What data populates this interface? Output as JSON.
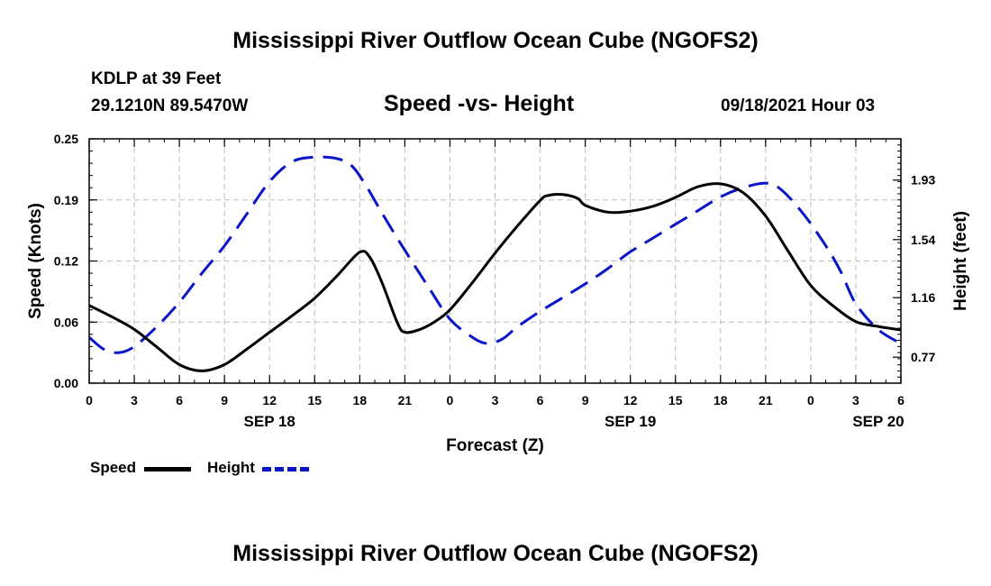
{
  "header": {
    "title": "Mississippi River Outflow Ocean Cube (NGOFS2)",
    "station": "KDLP at 39 Feet",
    "coords": "29.1210N  89.5470W",
    "subtitle": "Speed -vs- Height",
    "datetime": "09/18/2021 Hour 03"
  },
  "footer": {
    "title": "Mississippi River Outflow Ocean Cube (NGOFS2)"
  },
  "legend": {
    "items": [
      {
        "label": "Speed",
        "color": "#000000",
        "dashed": false
      },
      {
        "label": "Height",
        "color": "#0a14c8",
        "dashed": true
      }
    ]
  },
  "chart_data": {
    "type": "line",
    "xlabel": "Forecast (Z)",
    "ylabel": "Speed (Knots)",
    "y2label": "Height (feet)",
    "x_unit": "forecast hours from 00Z SEP 18",
    "xlim": [
      0,
      54
    ],
    "ylim": [
      0,
      0.25
    ],
    "y2lim": [
      0.6,
      2.2
    ],
    "x_ticks": [
      0,
      3,
      6,
      9,
      12,
      15,
      18,
      21,
      24,
      27,
      30,
      33,
      36,
      39,
      42,
      45,
      48,
      51,
      54
    ],
    "x_tick_labels": [
      "0",
      "3",
      "6",
      "9",
      "12",
      "15",
      "18",
      "21",
      "0",
      "3",
      "6",
      "9",
      "12",
      "15",
      "18",
      "21",
      "0",
      "3",
      "6"
    ],
    "y_ticks": [
      0,
      0.0625,
      0.125,
      0.1875,
      0.25
    ],
    "y_tick_labels": [
      "0.00",
      "0.06",
      "0.12",
      "0.19",
      "0.25"
    ],
    "y2_ticks": [
      0.77,
      1.16,
      1.54,
      1.93
    ],
    "y2_tick_labels": [
      "0.77",
      "1.16",
      "1.54",
      "1.93"
    ],
    "date_labels": [
      {
        "x": 12,
        "label": "SEP 18"
      },
      {
        "x": 36,
        "label": "SEP 19"
      },
      {
        "x": 52.5,
        "label": "SEP 20"
      }
    ],
    "grid": true,
    "series": [
      {
        "name": "Speed",
        "axis": "left",
        "color": "#000000",
        "dashed": false,
        "x": [
          0,
          1.5,
          3,
          4.5,
          6,
          7.5,
          9,
          10.5,
          12,
          13.5,
          15,
          16.5,
          18,
          18.7,
          19.5,
          20.5,
          21,
          22,
          23,
          24,
          25.5,
          27,
          28.5,
          30,
          30.5,
          31.5,
          32.5,
          33,
          34.5,
          36,
          37.5,
          39,
          40.5,
          42,
          43.5,
          45,
          46.5,
          48,
          49.5,
          51,
          52.5,
          54
        ],
        "values": [
          0.0795,
          0.068,
          0.055,
          0.037,
          0.019,
          0.0125,
          0.019,
          0.035,
          0.052,
          0.069,
          0.087,
          0.11,
          0.134,
          0.128,
          0.102,
          0.062,
          0.052,
          0.055,
          0.063,
          0.075,
          0.103,
          0.133,
          0.161,
          0.187,
          0.192,
          0.193,
          0.189,
          0.182,
          0.175,
          0.176,
          0.181,
          0.19,
          0.201,
          0.204,
          0.195,
          0.171,
          0.135,
          0.1,
          0.079,
          0.063,
          0.058,
          0.0545
        ]
      },
      {
        "name": "Height",
        "axis": "right",
        "color": "#0a14c8",
        "dashed": true,
        "x": [
          0,
          1,
          2,
          3,
          4.5,
          6,
          7.5,
          9,
          10.5,
          12,
          13.5,
          15,
          16.5,
          17.5,
          18.5,
          19.5,
          21,
          22.5,
          24,
          25.5,
          26.5,
          27.5,
          28.5,
          30,
          31.5,
          33,
          34.5,
          36,
          37.5,
          39,
          40.5,
          42,
          43.5,
          45,
          46,
          47.5,
          49,
          50,
          51,
          52.5,
          54
        ],
        "values": [
          0.9,
          0.82,
          0.8,
          0.84,
          0.97,
          1.13,
          1.32,
          1.5,
          1.71,
          1.92,
          2.05,
          2.08,
          2.07,
          2.02,
          1.88,
          1.71,
          1.47,
          1.24,
          1.02,
          0.9,
          0.86,
          0.89,
          0.97,
          1.07,
          1.16,
          1.25,
          1.35,
          1.46,
          1.55,
          1.64,
          1.73,
          1.82,
          1.88,
          1.91,
          1.87,
          1.71,
          1.5,
          1.33,
          1.12,
          0.95,
          0.86
        ]
      }
    ]
  }
}
